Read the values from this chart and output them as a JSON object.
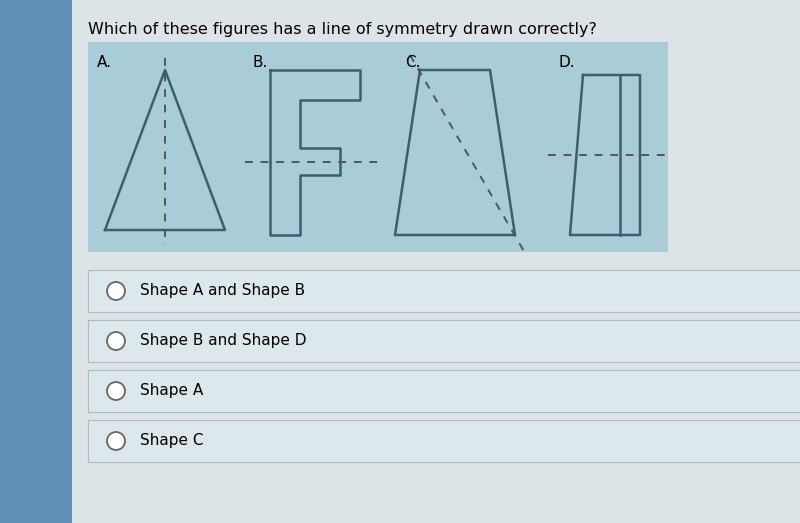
{
  "title": "Which of these figures has a line of symmetry drawn correctly?",
  "title_fontsize": 11.5,
  "fig_bg": "#c8d8e8",
  "main_bg": "#e8ecf0",
  "panel_bg": "#a8ccd8",
  "shape_color": "#3a6070",
  "shape_lw": 1.8,
  "dashed_color": "#555555",
  "dashed_lw": 1.4,
  "options": [
    "Shape A and Shape B",
    "Shape B and Shape D",
    "Shape A",
    "Shape C"
  ],
  "labels": [
    "A.",
    "B.",
    "C.",
    "D."
  ],
  "option_bg": "#dce8ec",
  "option_border": "#b0b8c0"
}
